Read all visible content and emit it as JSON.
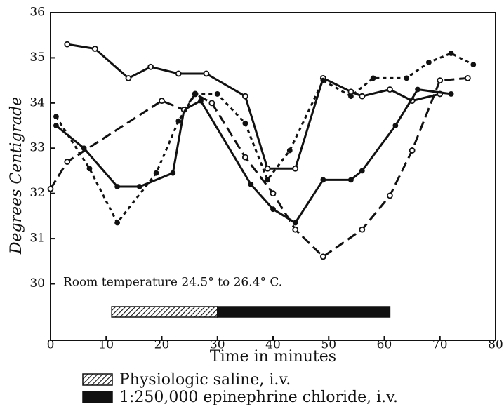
{
  "chart_data": {
    "type": "line",
    "x_label": "Time in minutes",
    "y_label": "Degrees Centigrade",
    "annotation": "Room temperature 24.5° to 26.4° C.",
    "xlim": [
      0,
      80
    ],
    "xticks": [
      0,
      10,
      20,
      30,
      40,
      50,
      60,
      70,
      80
    ],
    "ylim": [
      28.75,
      36
    ],
    "yticks": [
      30,
      31,
      32,
      33,
      34,
      35,
      36
    ],
    "series": [
      {
        "color": "#111",
        "dash": "solid",
        "marker": "open",
        "x": [
          3,
          8,
          14,
          18,
          23,
          28,
          35,
          39,
          44,
          49,
          54,
          56,
          61,
          65,
          70
        ],
        "values": [
          35.3,
          35.2,
          34.55,
          34.8,
          34.65,
          34.65,
          34.15,
          32.55,
          32.55,
          34.55,
          34.25,
          34.15,
          34.3,
          34.05,
          34.2
        ]
      },
      {
        "color": "#111",
        "dash": "solid",
        "marker": "filled",
        "x": [
          1,
          6,
          12,
          16,
          22,
          24,
          27,
          36,
          40,
          44,
          49,
          54,
          56,
          62,
          66,
          72
        ],
        "values": [
          33.5,
          33.0,
          32.15,
          32.15,
          32.45,
          33.85,
          34.05,
          32.2,
          31.65,
          31.35,
          32.3,
          32.3,
          32.5,
          33.5,
          34.3,
          34.2
        ]
      },
      {
        "color": "#111",
        "dash": "long",
        "marker": "open",
        "x": [
          0,
          3,
          20,
          24,
          26,
          29,
          35,
          40,
          44,
          49,
          56,
          61,
          65,
          70,
          75
        ],
        "values": [
          32.1,
          32.7,
          34.05,
          33.85,
          34.2,
          34.0,
          32.8,
          32.0,
          31.2,
          30.6,
          31.2,
          31.95,
          32.95,
          34.5,
          34.55
        ]
      },
      {
        "color": "#111",
        "dash": "short",
        "marker": "filled",
        "x": [
          1,
          7,
          12,
          19,
          23,
          26,
          30,
          35,
          39,
          43,
          49,
          54,
          58,
          64,
          68,
          72,
          76
        ],
        "values": [
          33.7,
          32.55,
          31.35,
          32.45,
          33.6,
          34.2,
          34.2,
          33.55,
          32.3,
          32.95,
          34.5,
          34.15,
          34.55,
          34.55,
          34.9,
          35.1,
          34.85
        ]
      }
    ],
    "treatments": [
      {
        "label": "Physiologic saline, i.v.",
        "start": 11,
        "end": 30,
        "fill": "hatched"
      },
      {
        "label": "1:250,000 epinephrine chloride, i.v.",
        "start": 30,
        "end": 61,
        "fill": "solid"
      }
    ]
  }
}
